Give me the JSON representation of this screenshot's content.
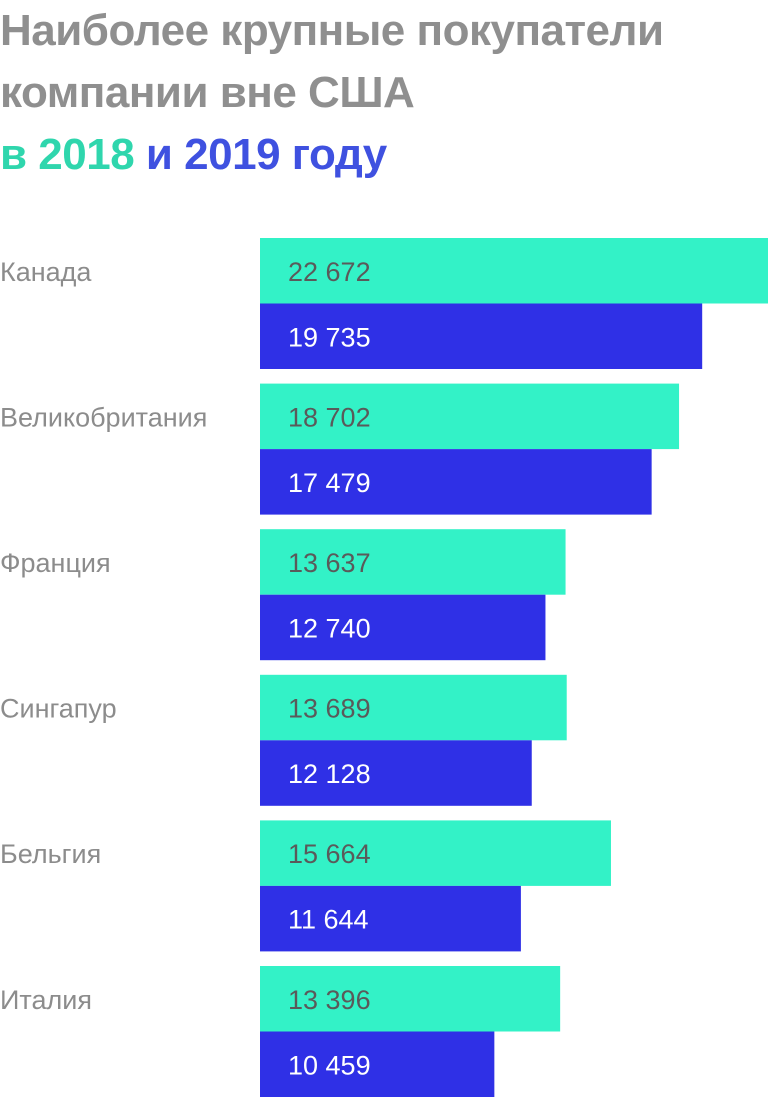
{
  "title": {
    "line1": "Наиболее крупные покупатели",
    "line2": "компании вне США",
    "line3_prefix": "в ",
    "line3_year1": "2018",
    "line3_mid": " и ",
    "line3_year2": "2019",
    "line3_suffix": " году"
  },
  "colors": {
    "series_2018": "#33f2c7",
    "series_2019": "#2f30e6",
    "label_on_2018": "#5a5a5a",
    "label_on_2019": "#ffffff",
    "category_label": "#8c8c8c"
  },
  "chart_data": {
    "type": "bar",
    "orientation": "horizontal",
    "categories": [
      "Канада",
      "Великобритания",
      "Франция",
      "Сингапур",
      "Бельгия",
      "Италия"
    ],
    "series": [
      {
        "name": "2018",
        "values": [
          22672,
          18702,
          13637,
          13689,
          15664,
          13396
        ],
        "labels": [
          "22 672",
          "18 702",
          "13 637",
          "13 689",
          "15 664",
          "13 396"
        ]
      },
      {
        "name": "2019",
        "values": [
          19735,
          17479,
          12740,
          12128,
          11644,
          10459
        ],
        "labels": [
          "19 735",
          "17 479",
          "12 740",
          "12 128",
          "11 644",
          "10 459"
        ]
      }
    ],
    "xlim": [
      0,
      22672
    ],
    "grid": false,
    "axes_visible": false
  }
}
